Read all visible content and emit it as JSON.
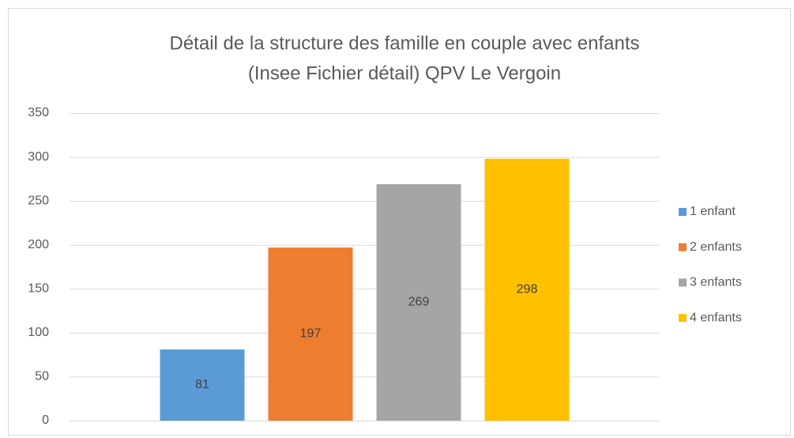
{
  "chart_data": {
    "type": "bar",
    "title": [
      "Détail de la structure des famille en couple avec enfants",
      "(Insee Fichier détail) QPV Le Vergoin"
    ],
    "categories": [
      null
    ],
    "series": [
      {
        "name": "1 enfant",
        "color": "#5b9bd5",
        "values": [
          81
        ]
      },
      {
        "name": "2 enfants",
        "color": "#ed7d31",
        "values": [
          197
        ]
      },
      {
        "name": "3 enfants",
        "color": "#a5a5a5",
        "values": [
          269
        ]
      },
      {
        "name": "4 enfants",
        "color": "#ffc000",
        "values": [
          298
        ]
      }
    ],
    "ylim": [
      0,
      350
    ],
    "yticks": [
      0,
      50,
      100,
      150,
      200,
      250,
      300,
      350
    ],
    "grid": true,
    "legend": "right",
    "data_labels": true
  }
}
